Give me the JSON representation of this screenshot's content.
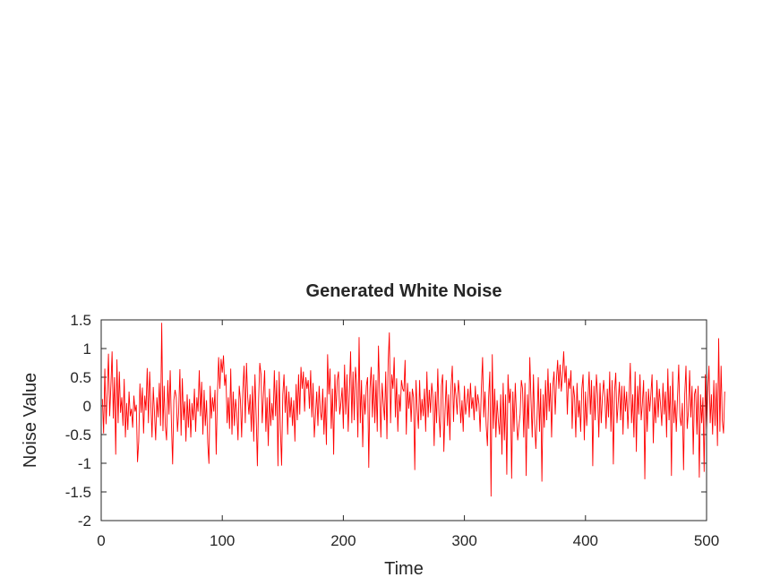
{
  "chart_data": {
    "type": "line",
    "title": "Generated White Noise",
    "xlabel": "Time",
    "ylabel": "Noise Value",
    "xlim": [
      0,
      500
    ],
    "ylim": [
      -2,
      1.5
    ],
    "xticks": [
      0,
      100,
      200,
      300,
      400,
      500
    ],
    "yticks": [
      -2,
      -1.5,
      -1,
      -0.5,
      0,
      0.5,
      1,
      1.5
    ],
    "grid": false,
    "series": [
      {
        "color": "#ff0000",
        "x_start": 1,
        "x_step": 1,
        "values": [
          0.12,
          -0.48,
          0.65,
          -0.32,
          0.22,
          0.91,
          -0.18,
          0.35,
          0.95,
          -0.22,
          0.5,
          -0.85,
          0.81,
          -0.3,
          0.6,
          -0.12,
          0.15,
          -0.35,
          0.47,
          -0.55,
          0.05,
          -0.42,
          0.25,
          -0.18,
          -0.05,
          -0.38,
          0.18,
          -0.1,
          0.02,
          -0.98,
          -0.62,
          0.39,
          -0.12,
          0.32,
          -0.48,
          0.18,
          -0.08,
          0.66,
          -0.3,
          0.6,
          0.05,
          -0.55,
          0.33,
          -0.12,
          -0.6,
          0.15,
          -0.2,
          0.4,
          -0.35,
          1.45,
          -0.44,
          0.35,
          -0.35,
          -0.6,
          0.45,
          -0.15,
          0.62,
          -0.3,
          -1.02,
          0.1,
          0.28,
          0.15,
          -0.45,
          -0.1,
          0.64,
          -0.52,
          0.48,
          -0.25,
          0.08,
          -0.62,
          0.2,
          -0.38,
          0.12,
          -0.55,
          0.05,
          -0.25,
          0.3,
          -0.45,
          0.15,
          -0.1,
          0.62,
          -0.18,
          0.42,
          -0.5,
          0.28,
          -0.35,
          0.1,
          -0.65,
          -1.01,
          0.35,
          -0.22,
          0.15,
          -0.1,
          0.28,
          -0.85,
          0.2,
          0.85,
          0.3,
          0.82,
          0.58,
          0.88,
          0.35,
          0.55,
          -0.3,
          0.15,
          -0.4,
          0.65,
          -0.5,
          0.25,
          -0.35,
          0.12,
          -0.12,
          -0.6,
          0.35,
          0.1,
          -0.55,
          0.28,
          0.7,
          -0.3,
          0.75,
          0.15,
          -0.15,
          0.2,
          -0.45,
          0.35,
          -0.62,
          0.55,
          -0.18,
          -1.05,
          0.1,
          0.75,
          0.55,
          -0.3,
          0.2,
          0.62,
          -0.45,
          0.15,
          -0.7,
          0.3,
          -0.35,
          0.05,
          -0.25,
          0.62,
          -0.18,
          0.45,
          -1.05,
          0.6,
          -0.4,
          -1.04,
          0.2,
          0.55,
          -0.12,
          0.35,
          -0.5,
          0.25,
          -0.2,
          0.15,
          -0.35,
          0.1,
          -0.62,
          0.38,
          -0.25,
          0.55,
          -0.15,
          0.68,
          0.3,
          0.6,
          -0.1,
          0.5,
          0.3,
          0.45,
          -0.05,
          0.62,
          -0.2,
          0.4,
          -0.55,
          -0.15,
          0.25,
          -0.35,
          0.35,
          -0.1,
          -0.25,
          0.3,
          -0.5,
          0.15,
          -0.68,
          0.9,
          0.2,
          0.65,
          -0.4,
          0.3,
          -0.85,
          0.55,
          -0.1,
          0.45,
          0.6,
          -0.15,
          0.05,
          0.32,
          -0.4,
          0.72,
          -0.15,
          0.55,
          -0.45,
          0.25,
          0.95,
          -0.3,
          0.6,
          -0.25,
          0.68,
          0.38,
          -0.55,
          1.2,
          -0.3,
          0.45,
          -0.72,
          0.2,
          -0.15,
          0.35,
          0.5,
          -1.08,
          0.3,
          0.68,
          -0.2,
          0.55,
          -0.3,
          0.45,
          -0.45,
          1.05,
          0.25,
          -0.55,
          0.4,
          0.05,
          -0.25,
          0.6,
          -0.58,
          0.75,
          1.28,
          -0.3,
          0.55,
          0.3,
          0.85,
          -0.2,
          0.48,
          -0.45,
          0.2,
          -0.1,
          0.45,
          0.3,
          0.25,
          0.8,
          -0.5,
          0.4,
          -0.05,
          0.25,
          -0.28,
          0.3,
          0.15,
          -1.12,
          0.45,
          -0.05,
          -0.4,
          0.45,
          -0.25,
          0.12,
          -0.18,
          0.3,
          -0.45,
          0.6,
          -0.2,
          0.28,
          -0.12,
          0.4,
          0.15,
          -0.7,
          0.25,
          -0.3,
          0.65,
          -0.15,
          -0.55,
          0.35,
          0.55,
          -0.8,
          -0.1,
          0.45,
          -0.35,
          0.2,
          -0.6,
          0.35,
          0.7,
          -0.28,
          0.4,
          0.18,
          -0.15,
          0.45,
          0.2,
          -0.3,
          0.1,
          -0.45,
          0.35,
          -0.15,
          0.05,
          0.3,
          -0.2,
          0.4,
          -0.05,
          0.15,
          -0.25,
          0.35,
          -0.1,
          0.2,
          0.03,
          -0.45,
          0.3,
          0.85,
          -0.2,
          0.25,
          -0.35,
          -0.7,
          0.15,
          0.6,
          -1.58,
          0.9,
          -0.4,
          0.3,
          -0.55,
          0.1,
          -0.25,
          -0.5,
          0.2,
          -0.85,
          0.4,
          -0.6,
          0.2,
          -1.2,
          0.55,
          0.05,
          0.3,
          -1.27,
          0.25,
          -0.45,
          0.4,
          -0.18,
          -0.6,
          -0.35,
          -0.15,
          0.45,
          0.3,
          -0.55,
          0.4,
          -1.22,
          0.2,
          -0.4,
          0.85,
          0.1,
          -0.55,
          0.55,
          -0.3,
          -0.75,
          -0.2,
          0.5,
          -0.45,
          0.3,
          -1.32,
          0.2,
          -0.38,
          0.45,
          -0.25,
          0.65,
          -0.1,
          0.4,
          -0.55,
          0.35,
          0.6,
          -0.15,
          0.45,
          0.8,
          0.3,
          0.72,
          0.25,
          0.55,
          0.95,
          0.4,
          0.7,
          -0.15,
          0.48,
          0.3,
          0.62,
          -0.4,
          0.35,
          0.15,
          -0.55,
          0.4,
          -0.2,
          0.1,
          -0.45,
          0.3,
          0.55,
          -0.6,
          0.25,
          -0.35,
          0.1,
          0.6,
          -0.15,
          0.45,
          -1.05,
          0.35,
          -0.25,
          0.55,
          0.2,
          -0.55,
          0.4,
          -0.3,
          0.15,
          0.45,
          0.15,
          -0.4,
          0.3,
          -0.2,
          0.6,
          -0.45,
          0.45,
          -1.02,
          0.25,
          0.58,
          -0.3,
          0.05,
          0.42,
          -0.25,
          0.35,
          -0.5,
          0.35,
          -0.1,
          0.25,
          -0.4,
          0.15,
          0.75,
          -0.3,
          0.2,
          -0.55,
          0.6,
          -0.8,
          0.35,
          -0.15,
          0.55,
          -0.25,
          0.05,
          0.45,
          -1.28,
          0.25,
          -0.45,
          0.3,
          -0.1,
          0.2,
          0.55,
          -0.65,
          0.15,
          -0.3,
          0.45,
          -0.2,
          0.3,
          0.02,
          -0.35,
          0.4,
          -0.15,
          0.25,
          -0.55,
          0.65,
          -0.25,
          0.35,
          -1.22,
          0.6,
          -0.3,
          0.1,
          -0.45,
          0.15,
          0.72,
          -0.2,
          -0.35,
          0.05,
          -1.12,
          0.2,
          0.7,
          -0.4,
          -0.1,
          0.62,
          -0.2,
          0.35,
          -0.85,
          0.2,
          0.3,
          -0.5,
          0.35,
          -1.25,
          0.2,
          -0.3,
          0.15,
          -1.15,
          0.55,
          -0.45,
          0.25,
          0.7,
          -0.3,
          0.2,
          -0.5,
          0.45,
          -0.35,
          0.4,
          -0.7,
          1.18,
          -0.45,
          0.7,
          -0.25,
          -0.48,
          0.25
        ]
      }
    ]
  }
}
